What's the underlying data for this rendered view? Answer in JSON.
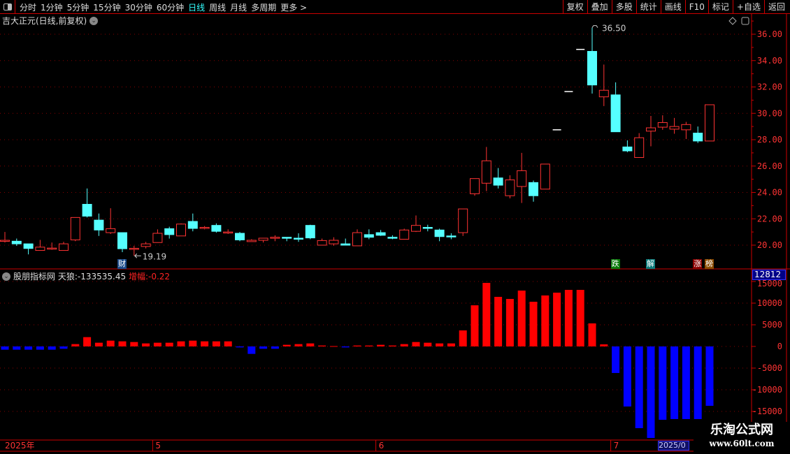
{
  "toolbar": {
    "periods": [
      "分时",
      "1分钟",
      "5分钟",
      "15分钟",
      "30分钟",
      "60分钟",
      "日线",
      "周线",
      "月线",
      "多周期",
      "更多 >"
    ],
    "active": "日线",
    "buttons": [
      "复权",
      "叠加",
      "多股",
      "统计",
      "画线",
      "F10",
      "标记",
      "+自选",
      "返回"
    ]
  },
  "main": {
    "title": "吉大正元(日线,前复权)",
    "high_label": "36.50",
    "low_label": "19.19"
  },
  "indicator": {
    "name": "股朋指标网",
    "value_label": "天狼:-133535.45",
    "change_label_name": "增幅:",
    "change_value": "-0.22",
    "current_value": "12812"
  },
  "markers": [
    {
      "text": "财",
      "color": "#1a4a8a",
      "index": 10
    },
    {
      "text": "跌",
      "color": "#0a7a0a",
      "index": 52
    },
    {
      "text": "解",
      "color": "#0a7a7a",
      "index": 55
    },
    {
      "text": "涨",
      "color": "#8a0000",
      "index": 59
    },
    {
      "text": "榜",
      "color": "#8a4a00",
      "index": 60
    }
  ],
  "date_axis": {
    "labels": [
      {
        "text": "2025年",
        "index": 0
      },
      {
        "text": "5",
        "index": 13
      },
      {
        "text": "6",
        "index": 32
      },
      {
        "text": "7",
        "index": 52
      }
    ],
    "highlight": "2025/0"
  },
  "watermark": {
    "line1": "乐淘公式网",
    "line2": "www.60lt.com"
  },
  "colors": {
    "up": "#ff3333",
    "down": "#55ffff",
    "limit": "#ffffff",
    "pos_bar": "#ff0000",
    "neg_bar": "#0000ff",
    "axis": "#cc0000"
  },
  "chart_data": [
    {
      "type": "candlestick",
      "ylim": [
        19,
        37
      ],
      "yticks": [
        "20.00",
        "22.00",
        "24.00",
        "26.00",
        "28.00",
        "30.00",
        "32.00",
        "34.00",
        "36.00"
      ],
      "ohlc": [
        [
          20.37,
          21.0,
          20.2,
          20.37
        ],
        [
          20.3,
          20.5,
          19.95,
          20.1
        ],
        [
          20.1,
          20.1,
          19.3,
          19.75
        ],
        [
          19.6,
          20.4,
          19.6,
          19.85
        ],
        [
          19.7,
          20.2,
          19.65,
          19.78
        ],
        [
          19.6,
          20.25,
          19.6,
          20.1
        ],
        [
          20.4,
          22.1,
          20.3,
          22.1
        ],
        [
          23.1,
          24.3,
          22.1,
          22.2
        ],
        [
          21.9,
          22.4,
          20.7,
          21.15
        ],
        [
          20.95,
          22.8,
          20.85,
          21.25
        ],
        [
          20.95,
          20.95,
          19.47,
          19.73
        ],
        [
          19.73,
          19.95,
          19.19,
          19.76
        ],
        [
          19.9,
          20.25,
          19.75,
          20.1
        ],
        [
          20.2,
          21.2,
          20.2,
          20.9
        ],
        [
          21.25,
          21.4,
          20.5,
          20.8
        ],
        [
          20.7,
          21.65,
          20.7,
          21.6
        ],
        [
          21.8,
          22.4,
          21.05,
          21.27
        ],
        [
          21.27,
          21.45,
          21.2,
          21.35
        ],
        [
          21.5,
          21.65,
          20.95,
          21.05
        ],
        [
          21.0,
          21.2,
          20.85,
          21.0
        ],
        [
          20.9,
          21.0,
          20.3,
          20.4
        ],
        [
          20.27,
          20.45,
          20.27,
          20.37
        ],
        [
          20.37,
          20.55,
          20.2,
          20.53
        ],
        [
          20.55,
          20.75,
          20.3,
          20.6
        ],
        [
          20.6,
          20.6,
          20.3,
          20.55
        ],
        [
          20.53,
          20.9,
          20.25,
          20.5
        ],
        [
          21.5,
          21.55,
          20.45,
          20.55
        ],
        [
          20.0,
          20.5,
          20.0,
          20.35
        ],
        [
          20.1,
          20.6,
          19.95,
          20.37
        ],
        [
          20.1,
          20.5,
          20.0,
          20.0
        ],
        [
          19.95,
          21.2,
          19.95,
          20.95
        ],
        [
          20.8,
          21.2,
          20.45,
          20.6
        ],
        [
          20.95,
          21.15,
          20.7,
          20.75
        ],
        [
          20.6,
          20.75,
          20.45,
          20.58
        ],
        [
          20.45,
          21.25,
          20.45,
          21.15
        ],
        [
          21.05,
          22.25,
          21.0,
          21.5
        ],
        [
          21.35,
          21.55,
          21.05,
          21.3
        ],
        [
          21.15,
          21.25,
          20.3,
          20.65
        ],
        [
          20.7,
          20.9,
          20.45,
          20.68
        ],
        [
          20.95,
          22.75,
          20.7,
          22.75
        ],
        [
          23.9,
          25.05,
          23.75,
          25.05
        ],
        [
          24.7,
          27.45,
          24.1,
          26.4
        ],
        [
          25.1,
          25.85,
          24.3,
          24.55
        ],
        [
          23.75,
          25.3,
          23.55,
          24.95
        ],
        [
          24.45,
          27.0,
          23.2,
          25.65
        ],
        [
          24.75,
          24.9,
          23.3,
          23.75
        ],
        [
          24.25,
          26.15,
          24.25,
          26.15
        ],
        [
          28.75,
          28.75,
          28.75,
          28.75
        ],
        [
          31.65,
          31.65,
          31.65,
          31.65
        ],
        [
          34.85,
          34.85,
          34.85,
          34.85
        ],
        [
          34.7,
          36.5,
          31.5,
          32.15
        ],
        [
          31.25,
          33.7,
          30.55,
          31.75
        ],
        [
          31.4,
          32.35,
          28.6,
          28.6
        ],
        [
          27.45,
          27.95,
          27.05,
          27.15
        ],
        [
          26.65,
          28.5,
          26.65,
          28.15
        ],
        [
          28.65,
          29.8,
          27.5,
          28.9
        ],
        [
          28.95,
          29.85,
          28.75,
          29.3
        ],
        [
          28.8,
          29.65,
          28.45,
          29.0
        ],
        [
          28.75,
          29.35,
          28.05,
          29.15
        ],
        [
          28.5,
          29.0,
          27.75,
          27.9
        ],
        [
          27.9,
          30.65,
          27.9,
          30.65
        ]
      ]
    },
    {
      "type": "bar",
      "ylim": [
        -21500,
        16000
      ],
      "yticks": [
        "-15000",
        "-10000",
        "-5000",
        "0",
        "5000",
        "10000",
        "15000"
      ],
      "values": [
        -750,
        -750,
        -750,
        -750,
        -750,
        -540,
        540,
        2150,
        860,
        1340,
        1180,
        1020,
        700,
        860,
        860,
        1180,
        1340,
        1180,
        1180,
        1180,
        -220,
        -1720,
        -540,
        -540,
        380,
        540,
        700,
        210,
        80,
        -220,
        210,
        210,
        380,
        210,
        540,
        1020,
        860,
        700,
        700,
        3700,
        9500,
        14680,
        11450,
        10970,
        12900,
        10320,
        11770,
        12420,
        13060,
        13060,
        5320,
        480,
        -6130,
        -13870,
        -18870,
        -21130,
        -16940,
        -16770,
        -16770,
        -16770,
        -13710
      ]
    }
  ]
}
